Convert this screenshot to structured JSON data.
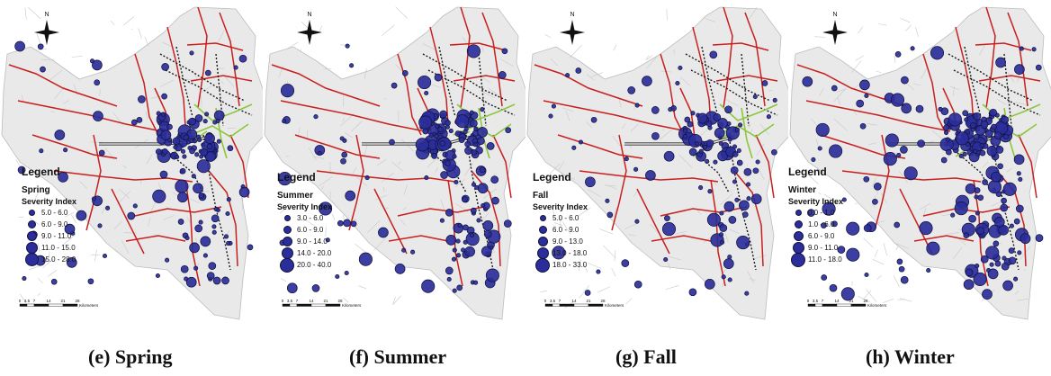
{
  "north_label": "N",
  "scale_ticks": [
    "0",
    "3.5",
    "7",
    "14",
    "21",
    "28"
  ],
  "scale_unit": "Kilometers",
  "legend_title": "Legend",
  "legend_subtitle": "Severity Index",
  "panels": [
    {
      "id": "spring",
      "season": "Spring",
      "caption": "(e) Spring",
      "classes": [
        "5.0 - 6.0",
        "6.0 - 9.0",
        "9.0 - 11.0",
        "11.0 - 15.0",
        "15.0 - 28.0"
      ]
    },
    {
      "id": "summer",
      "season": "Summer",
      "caption": "(f) Summer",
      "classes": [
        "3.0 - 6.0",
        "6.0 - 9.0",
        "9.0 - 14.0",
        "14.0 - 20.0",
        "20.0 - 40.0"
      ]
    },
    {
      "id": "fall",
      "season": "Fall",
      "caption": "(g) Fall",
      "classes": [
        "5.0 - 6.0",
        "6.0 - 9.0",
        "9.0 - 13.0",
        "13.0 - 18.0",
        "18.0 - 33.0"
      ]
    },
    {
      "id": "winter",
      "season": "Winter",
      "caption": "(h) Winter",
      "classes": [
        "0.0 - 1.0",
        "1.0 - 6.0",
        "6.0 - 9.0",
        "9.0 - 11.0",
        "11.0 - 18.0"
      ]
    }
  ],
  "colors": {
    "point_fill": "#2b2e9a",
    "point_stroke": "#10123d",
    "road_red": "#c8201e",
    "road_black": "#1a1a1a",
    "highway_green": "#8cc63f",
    "network_gray": "#c9c9c9",
    "region_fill": "#e9e9e9"
  }
}
